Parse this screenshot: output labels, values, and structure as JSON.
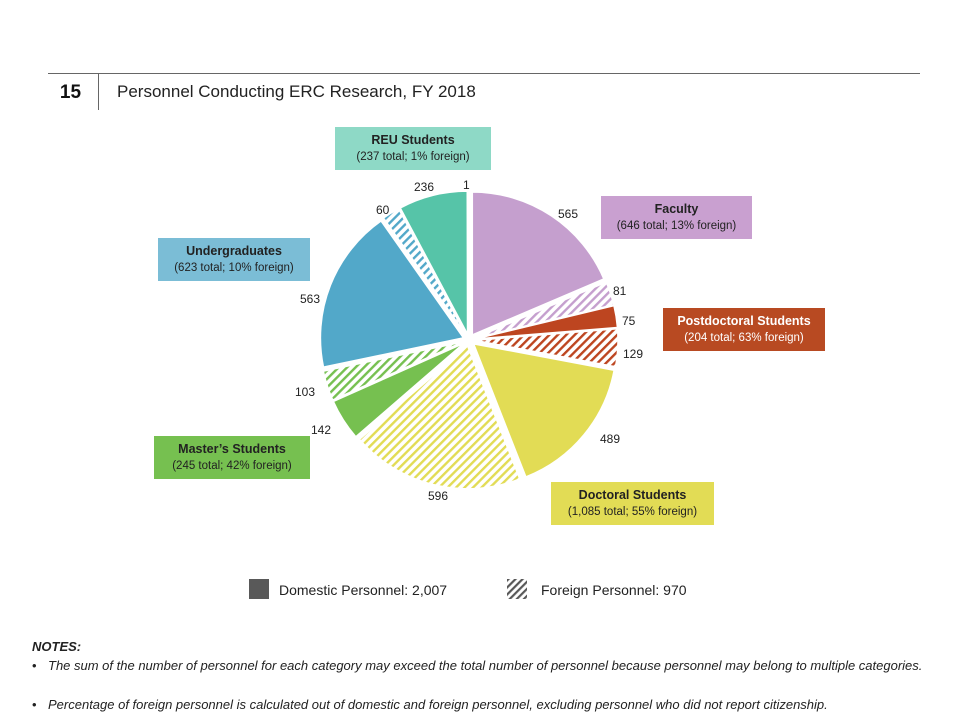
{
  "header": {
    "page_number": "15",
    "title": "Personnel Conducting ERC Research, FY 2018"
  },
  "categories": {
    "faculty": {
      "name": "Faculty",
      "detail": "(646 total; 13% foreign)",
      "color": "#c59fce"
    },
    "postdoctoral": {
      "name": "Postdoctoral Students",
      "detail": "(204 total; 63% foreign)",
      "color": "#bd4520"
    },
    "doctoral": {
      "name": "Doctoral Students",
      "detail": "(1,085 total; 55% foreign)",
      "color": "#e2dc55"
    },
    "masters": {
      "name": "Master’s Students",
      "detail": "(245 total; 42% foreign)",
      "color": "#76c050"
    },
    "undergraduates": {
      "name": "Undergraduates",
      "detail": "(623 total; 10% foreign)",
      "color": "#52a8c9"
    },
    "reu": {
      "name": "REU Students",
      "detail": "(237 total; 1% foreign)",
      "color": "#56c4a8"
    }
  },
  "chart_data": {
    "type": "pie",
    "title": "Personnel Conducting ERC Research, FY 2018",
    "slices": [
      {
        "category": "Faculty",
        "type": "Domestic",
        "value": 565,
        "label": "565"
      },
      {
        "category": "Faculty",
        "type": "Foreign",
        "value": 81,
        "label": "81"
      },
      {
        "category": "Postdoctoral Students",
        "type": "Domestic",
        "value": 75,
        "label": "75"
      },
      {
        "category": "Postdoctoral Students",
        "type": "Foreign",
        "value": 129,
        "label": "129"
      },
      {
        "category": "Doctoral Students",
        "type": "Domestic",
        "value": 489,
        "label": "489"
      },
      {
        "category": "Doctoral Students",
        "type": "Foreign",
        "value": 596,
        "label": "596"
      },
      {
        "category": "Master’s Students",
        "type": "Domestic",
        "value": 142,
        "label": "142"
      },
      {
        "category": "Master’s Students",
        "type": "Foreign",
        "value": 103,
        "label": "103"
      },
      {
        "category": "Undergraduates",
        "type": "Domestic",
        "value": 563,
        "label": "563"
      },
      {
        "category": "Undergraduates",
        "type": "Foreign",
        "value": 60,
        "label": "60"
      },
      {
        "category": "REU Students",
        "type": "Domestic",
        "value": 236,
        "label": "236"
      },
      {
        "category": "REU Students",
        "type": "Foreign",
        "value": 1,
        "label": "1"
      }
    ],
    "legend": [
      {
        "label": "Domestic Personnel: 2,007",
        "style": "solid"
      },
      {
        "label": "Foreign Personnel: 970",
        "style": "hatched"
      }
    ]
  },
  "notes": {
    "title": "NOTES:",
    "items": [
      "The sum of the number of personnel for each category may exceed the total number of personnel because personnel may belong to multiple categories.",
      "Percentage of foreign personnel is calculated out of domestic and foreign personnel, excluding personnel who did not report citizenship."
    ]
  }
}
